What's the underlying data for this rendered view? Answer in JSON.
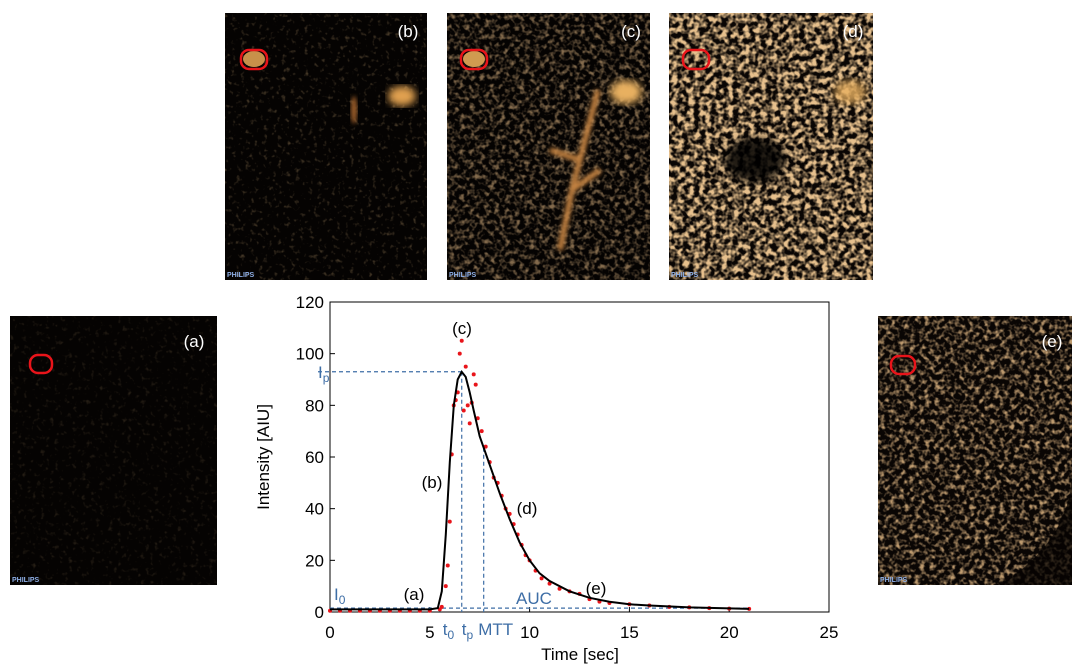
{
  "panels": [
    {
      "label": "(a)",
      "brand": "PHILIPS"
    },
    {
      "label": "(b)",
      "brand": "PHILIPS"
    },
    {
      "label": "(c)",
      "brand": "PHILIPS"
    },
    {
      "label": "(d)",
      "brand": "PHILIPS"
    },
    {
      "label": "(e)",
      "brand": "PHILIPS"
    }
  ],
  "chart_data": {
    "type": "line",
    "xlabel": "Time [sec]",
    "ylabel": "Intensity [AIU]",
    "xlim": [
      0,
      25
    ],
    "xticks": [
      0,
      5,
      10,
      15,
      20,
      25
    ],
    "ylim": [
      0,
      120
    ],
    "yticks": [
      0,
      20,
      40,
      60,
      80,
      100,
      120
    ],
    "series": [
      {
        "type": "scatter",
        "color": "#e8141a",
        "x": [
          0,
          0.5,
          1,
          1.5,
          2,
          2.5,
          3,
          3.5,
          4,
          4.5,
          5,
          5.5,
          5.6,
          5.8,
          5.9,
          6.0,
          6.1,
          6.2,
          6.3,
          6.4,
          6.5,
          6.6,
          6.7,
          6.8,
          6.9,
          7.0,
          7.1,
          7.2,
          7.3,
          7.4,
          7.6,
          7.8,
          8.0,
          8.2,
          8.4,
          8.6,
          8.8,
          9.0,
          9.2,
          9.4,
          9.6,
          9.8,
          10,
          10.3,
          10.6,
          11,
          11.5,
          12,
          12.5,
          13,
          13.5,
          14,
          15,
          16,
          17,
          18,
          19,
          20,
          21
        ],
        "values": [
          0.5,
          0.5,
          0.5,
          0.5,
          0.5,
          0.5,
          0.5,
          0.5,
          0.5,
          0.5,
          0.5,
          1,
          2,
          10,
          18,
          35,
          61,
          80,
          82,
          85,
          100,
          105,
          78,
          95,
          80,
          73,
          81,
          92,
          88,
          75,
          70,
          64,
          58,
          52,
          50,
          45,
          40,
          38,
          34,
          30,
          26,
          22,
          20,
          16,
          13,
          11,
          9,
          8,
          7,
          5,
          4,
          3.5,
          3,
          2.5,
          2,
          1.8,
          1.5,
          1.3,
          1.2
        ]
      },
      {
        "type": "line",
        "color": "#000000",
        "x": [
          0,
          5,
          5.4,
          5.6,
          5.8,
          6.0,
          6.2,
          6.4,
          6.6,
          6.8,
          7.0,
          7.2,
          7.5,
          8,
          8.5,
          9,
          9.5,
          10,
          10.5,
          11,
          12,
          13,
          14,
          15,
          16,
          18,
          21
        ],
        "values": [
          1,
          1,
          1.5,
          8,
          30,
          58,
          80,
          90,
          93,
          91,
          85,
          78,
          68,
          57,
          46,
          36,
          27,
          20,
          15,
          12,
          8,
          5.5,
          4,
          3,
          2.5,
          1.8,
          1.2
        ]
      }
    ],
    "reference": {
      "ip": 93,
      "tp": 6.6,
      "mtt": 7.7,
      "i0": 1.5,
      "t0": 5.5
    },
    "annotations": [
      {
        "text": "(a)"
      },
      {
        "text": "(b)"
      },
      {
        "text": "(c)"
      },
      {
        "text": "(d)"
      },
      {
        "text": "(e)"
      },
      {
        "text": "I",
        "sub": "p"
      },
      {
        "text": "I",
        "sub": "0"
      },
      {
        "text": "t",
        "sub": "0"
      },
      {
        "text": "t",
        "sub": "p"
      },
      {
        "text": "MTT"
      },
      {
        "text": "AUC"
      }
    ]
  }
}
